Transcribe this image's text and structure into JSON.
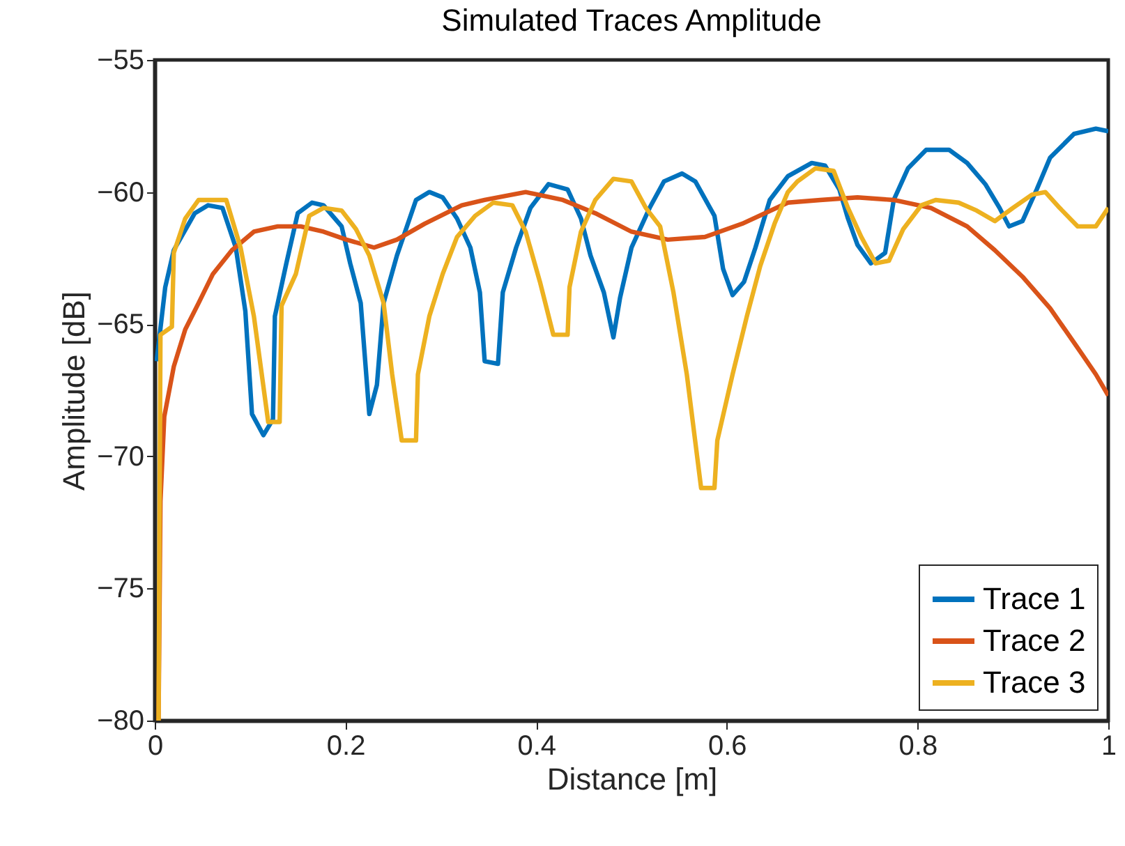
{
  "chart_data": {
    "type": "line",
    "title": "Simulated Traces Amplitude",
    "xlabel": "Distance [m]",
    "ylabel": "Amplitude [dB]",
    "xlim": [
      0,
      1
    ],
    "ylim": [
      -80,
      -55
    ],
    "xticks": [
      0,
      0.2,
      0.4,
      0.6,
      0.8,
      1
    ],
    "yticks": [
      -80,
      -75,
      -70,
      -65,
      -60,
      -55
    ],
    "grid": false,
    "legend": "bottom right",
    "marker": "none",
    "line_style": "solid",
    "series": [
      {
        "name": "Trace 1",
        "color": "#0072bd",
        "x": [
          0.002,
          0.011,
          0.02,
          0.042,
          0.056,
          0.071,
          0.085,
          0.095,
          0.102,
          0.114,
          0.124,
          0.126,
          0.138,
          0.15,
          0.165,
          0.177,
          0.196,
          0.205,
          0.216,
          0.225,
          0.233,
          0.24,
          0.254,
          0.274,
          0.288,
          0.302,
          0.317,
          0.331,
          0.341,
          0.346,
          0.36,
          0.365,
          0.379,
          0.394,
          0.413,
          0.433,
          0.447,
          0.457,
          0.471,
          0.481,
          0.488,
          0.5,
          0.519,
          0.534,
          0.553,
          0.567,
          0.587,
          0.596,
          0.606,
          0.618,
          0.63,
          0.645,
          0.664,
          0.689,
          0.703,
          0.718,
          0.727,
          0.737,
          0.751,
          0.766,
          0.775,
          0.79,
          0.809,
          0.833,
          0.852,
          0.871,
          0.886,
          0.896,
          0.91,
          0.925,
          0.939,
          0.964,
          0.987,
          1.0
        ],
        "values": [
          -66.4,
          -63.6,
          -62.2,
          -60.8,
          -60.5,
          -60.6,
          -62.1,
          -64.5,
          -68.4,
          -69.2,
          -68.6,
          -64.7,
          -62.7,
          -60.8,
          -60.4,
          -60.5,
          -61.3,
          -62.7,
          -64.2,
          -68.4,
          -67.3,
          -64.2,
          -62.4,
          -60.3,
          -60.0,
          -60.2,
          -61.0,
          -62.1,
          -63.8,
          -66.4,
          -66.5,
          -63.8,
          -62.1,
          -60.6,
          -59.7,
          -59.9,
          -61.0,
          -62.4,
          -63.8,
          -65.5,
          -64.0,
          -62.1,
          -60.6,
          -59.6,
          -59.3,
          -59.6,
          -60.9,
          -62.9,
          -63.9,
          -63.4,
          -62.1,
          -60.3,
          -59.4,
          -58.9,
          -59.0,
          -59.9,
          -61.0,
          -62.0,
          -62.7,
          -62.3,
          -60.3,
          -59.1,
          -58.4,
          -58.4,
          -58.9,
          -59.7,
          -60.6,
          -61.3,
          -61.1,
          -59.9,
          -58.7,
          -57.8,
          -57.6,
          -57.7
        ]
      },
      {
        "name": "Trace 2",
        "color": "#d95319",
        "x": [
          0.004,
          0.006,
          0.01,
          0.02,
          0.032,
          0.046,
          0.061,
          0.081,
          0.104,
          0.129,
          0.153,
          0.177,
          0.201,
          0.23,
          0.254,
          0.283,
          0.322,
          0.346,
          0.389,
          0.428,
          0.462,
          0.5,
          0.538,
          0.577,
          0.616,
          0.664,
          0.698,
          0.737,
          0.775,
          0.814,
          0.852,
          0.881,
          0.91,
          0.939,
          0.968,
          0.987,
          1.0
        ],
        "values": [
          -80,
          -71.7,
          -68.5,
          -66.6,
          -65.2,
          -64.2,
          -63.1,
          -62.2,
          -61.5,
          -61.3,
          -61.3,
          -61.5,
          -61.8,
          -62.1,
          -61.8,
          -61.2,
          -60.5,
          -60.3,
          -60.0,
          -60.3,
          -60.8,
          -61.5,
          -61.8,
          -61.7,
          -61.2,
          -60.4,
          -60.3,
          -60.2,
          -60.3,
          -60.6,
          -61.3,
          -62.2,
          -63.2,
          -64.4,
          -65.9,
          -66.9,
          -67.7
        ]
      },
      {
        "name": "Trace 3",
        "color": "#edb120",
        "x": [
          0.004,
          0.006,
          0.018,
          0.02,
          0.032,
          0.046,
          0.075,
          0.09,
          0.104,
          0.119,
          0.131,
          0.133,
          0.148,
          0.162,
          0.177,
          0.196,
          0.211,
          0.225,
          0.24,
          0.249,
          0.259,
          0.274,
          0.276,
          0.288,
          0.302,
          0.317,
          0.336,
          0.355,
          0.375,
          0.389,
          0.404,
          0.418,
          0.433,
          0.435,
          0.447,
          0.462,
          0.481,
          0.5,
          0.515,
          0.53,
          0.544,
          0.558,
          0.573,
          0.587,
          0.59,
          0.606,
          0.621,
          0.635,
          0.65,
          0.664,
          0.674,
          0.693,
          0.712,
          0.727,
          0.741,
          0.756,
          0.77,
          0.785,
          0.804,
          0.819,
          0.843,
          0.862,
          0.881,
          0.9,
          0.92,
          0.934,
          0.949,
          0.968,
          0.987,
          1.0
        ],
        "values": [
          -80,
          -65.4,
          -65.1,
          -62.3,
          -61.0,
          -60.3,
          -60.3,
          -62.1,
          -64.7,
          -68.7,
          -68.7,
          -64.3,
          -63.1,
          -60.9,
          -60.6,
          -60.7,
          -61.4,
          -62.4,
          -64.2,
          -66.9,
          -69.4,
          -69.4,
          -66.9,
          -64.7,
          -63.1,
          -61.7,
          -60.9,
          -60.4,
          -60.5,
          -61.5,
          -63.4,
          -65.4,
          -65.4,
          -63.6,
          -61.5,
          -60.3,
          -59.5,
          -59.6,
          -60.6,
          -61.3,
          -63.8,
          -66.9,
          -71.2,
          -71.2,
          -69.4,
          -66.9,
          -64.7,
          -62.8,
          -61.2,
          -60.0,
          -59.6,
          -59.1,
          -59.2,
          -60.6,
          -61.7,
          -62.7,
          -62.6,
          -61.4,
          -60.5,
          -60.3,
          -60.4,
          -60.7,
          -61.1,
          -60.6,
          -60.1,
          -60.0,
          -60.6,
          -61.3,
          -61.3,
          -60.6
        ]
      }
    ]
  }
}
